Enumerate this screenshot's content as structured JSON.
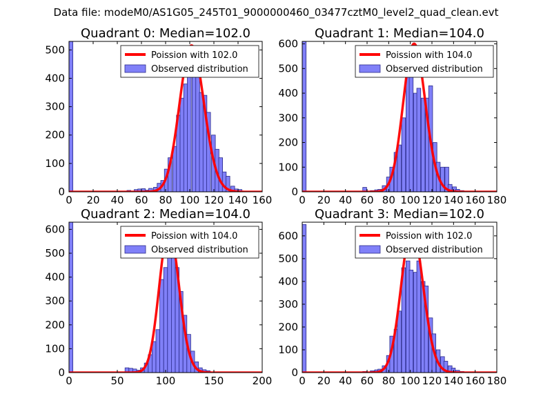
{
  "figure": {
    "suptitle": "Data file: modeM0/AS1G05_245T01_9000000460_03477cztM0_level2_quad_clean.evt"
  },
  "colors": {
    "bar_fill": "#8080f8",
    "bar_edge": "#2a2a8a",
    "curve": "#ff0000",
    "axis": "#000000",
    "background": "#ffffff"
  },
  "chart_data": [
    {
      "type": "bar",
      "title": "Quadrant 0: Median=102.0",
      "xlim": [
        0,
        160
      ],
      "ylim": [
        0,
        530
      ],
      "xticks": [
        0,
        20,
        40,
        60,
        80,
        100,
        120,
        140,
        160
      ],
      "yticks": [
        0,
        100,
        200,
        300,
        400,
        500
      ],
      "legend_position": "top-right",
      "legend": {
        "line_label": "Poission with 102.0",
        "bar_label": "Observed distribution"
      },
      "poisson_mean": 102.0,
      "poisson_peak": 515,
      "bin_width": 3.2,
      "bins": [
        [
          0,
          530
        ],
        [
          48,
          5
        ],
        [
          54,
          8
        ],
        [
          57,
          10
        ],
        [
          60,
          11
        ],
        [
          63,
          6
        ],
        [
          66,
          12
        ],
        [
          70,
          16
        ],
        [
          73,
          30
        ],
        [
          76,
          40
        ],
        [
          79,
          80
        ],
        [
          82,
          120
        ],
        [
          86,
          160
        ],
        [
          89,
          270
        ],
        [
          92,
          330
        ],
        [
          95,
          380
        ],
        [
          98,
          480
        ],
        [
          102,
          500
        ],
        [
          105,
          460
        ],
        [
          108,
          350
        ],
        [
          111,
          340
        ],
        [
          114,
          280
        ],
        [
          118,
          200
        ],
        [
          121,
          150
        ],
        [
          124,
          120
        ],
        [
          127,
          70
        ],
        [
          130,
          55
        ],
        [
          134,
          20
        ],
        [
          137,
          10
        ],
        [
          140,
          8
        ]
      ]
    },
    {
      "type": "bar",
      "title": "Quadrant 1: Median=104.0",
      "xlim": [
        0,
        180
      ],
      "ylim": [
        0,
        610
      ],
      "xticks": [
        0,
        20,
        40,
        60,
        80,
        100,
        120,
        140,
        160,
        180
      ],
      "yticks": [
        0,
        100,
        200,
        300,
        400,
        500,
        600
      ],
      "legend_position": "top-right",
      "legend": {
        "line_label": "Poission with 104.0",
        "bar_label": "Observed distribution"
      },
      "poisson_mean": 104.0,
      "poisson_peak": 600,
      "bin_width": 3.6,
      "bins": [
        [
          0,
          610
        ],
        [
          56,
          18
        ],
        [
          63,
          5
        ],
        [
          67,
          8
        ],
        [
          70,
          10
        ],
        [
          74,
          25
        ],
        [
          78,
          60
        ],
        [
          81,
          100
        ],
        [
          85,
          160
        ],
        [
          88,
          190
        ],
        [
          92,
          300
        ],
        [
          96,
          470
        ],
        [
          99,
          590
        ],
        [
          103,
          400
        ],
        [
          106,
          420
        ],
        [
          110,
          380
        ],
        [
          114,
          380
        ],
        [
          117,
          430
        ],
        [
          121,
          200
        ],
        [
          124,
          120
        ],
        [
          128,
          100
        ],
        [
          132,
          100
        ],
        [
          135,
          30
        ],
        [
          139,
          20
        ],
        [
          142,
          10
        ],
        [
          146,
          5
        ]
      ]
    },
    {
      "type": "bar",
      "title": "Quadrant 2: Median=104.0",
      "xlim": [
        0,
        200
      ],
      "ylim": [
        0,
        630
      ],
      "xticks": [
        0,
        50,
        100,
        150,
        200
      ],
      "yticks": [
        0,
        100,
        200,
        300,
        400,
        500,
        600
      ],
      "legend_position": "top-right",
      "legend": {
        "line_label": "Poission with 104.0",
        "bar_label": "Observed distribution"
      },
      "poisson_mean": 104.0,
      "poisson_peak": 600,
      "bin_width": 4.0,
      "bins": [
        [
          0,
          630
        ],
        [
          58,
          20
        ],
        [
          62,
          18
        ],
        [
          66,
          15
        ],
        [
          70,
          10
        ],
        [
          74,
          20
        ],
        [
          78,
          40
        ],
        [
          82,
          75
        ],
        [
          86,
          130
        ],
        [
          90,
          180
        ],
        [
          94,
          390
        ],
        [
          98,
          440
        ],
        [
          102,
          490
        ],
        [
          106,
          570
        ],
        [
          110,
          440
        ],
        [
          114,
          340
        ],
        [
          118,
          240
        ],
        [
          122,
          160
        ],
        [
          126,
          90
        ],
        [
          130,
          45
        ],
        [
          134,
          20
        ],
        [
          138,
          12
        ],
        [
          142,
          8
        ]
      ]
    },
    {
      "type": "bar",
      "title": "Quadrant 3: Median=102.0",
      "xlim": [
        0,
        180
      ],
      "ylim": [
        0,
        660
      ],
      "xticks": [
        0,
        20,
        40,
        60,
        80,
        100,
        120,
        140,
        160,
        180
      ],
      "yticks": [
        0,
        100,
        200,
        300,
        400,
        500,
        600
      ],
      "legend_position": "top-right",
      "legend": {
        "line_label": "Poission with 102.0",
        "bar_label": "Observed distribution"
      },
      "poisson_mean": 102.0,
      "poisson_peak": 635,
      "bin_width": 3.6,
      "bins": [
        [
          0,
          650
        ],
        [
          56,
          5
        ],
        [
          63,
          8
        ],
        [
          67,
          12
        ],
        [
          70,
          15
        ],
        [
          74,
          30
        ],
        [
          78,
          75
        ],
        [
          81,
          160
        ],
        [
          85,
          190
        ],
        [
          88,
          270
        ],
        [
          92,
          460
        ],
        [
          96,
          490
        ],
        [
          99,
          450
        ],
        [
          103,
          440
        ],
        [
          106,
          490
        ],
        [
          110,
          400
        ],
        [
          113,
          380
        ],
        [
          117,
          240
        ],
        [
          120,
          170
        ],
        [
          124,
          100
        ],
        [
          128,
          70
        ],
        [
          131,
          50
        ],
        [
          135,
          30
        ],
        [
          138,
          20
        ],
        [
          142,
          10
        ],
        [
          146,
          5
        ]
      ]
    }
  ]
}
